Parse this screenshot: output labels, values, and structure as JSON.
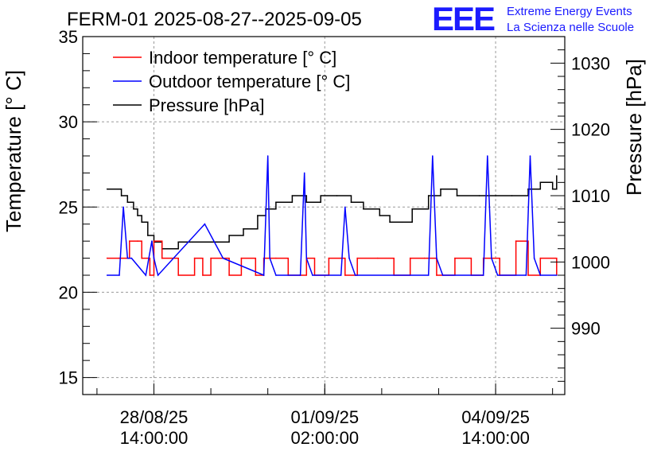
{
  "chart_data": {
    "type": "line",
    "title": "FERM-01 2025-08-27--2025-09-05",
    "ylabel_left": "Temperature [° C]",
    "ylabel_right": "Pressure [hPa]",
    "xlabel": "",
    "xlim": [
      "2025-08-27T03:00:00",
      "2025-09-06T00:00:00"
    ],
    "ylim_left": [
      14,
      35
    ],
    "ylim_right": [
      980,
      1034
    ],
    "left_ticks": [
      15,
      20,
      25,
      30,
      35
    ],
    "right_ticks": [
      990,
      1000,
      1010,
      1020,
      1030
    ],
    "x_ticks": [
      {
        "x": "2025-08-28T14:00:00",
        "date": "28/08/25",
        "time": "14:00:00"
      },
      {
        "x": "2025-09-01T02:00:00",
        "date": "01/09/25",
        "time": "02:00:00"
      },
      {
        "x": "2025-09-04T14:00:00",
        "date": "04/09/25",
        "time": "14:00:00"
      }
    ],
    "grid": true,
    "legend_position": "top-left",
    "series": [
      {
        "name": "Indoor temperature [° C]",
        "color": "#ff0000",
        "axis": "left",
        "step": true,
        "x": [
          "2025-08-27T15:00",
          "2025-08-27T21:00",
          "2025-08-28T02:00",
          "2025-08-28T06:00",
          "2025-08-28T08:00",
          "2025-08-28T12:00",
          "2025-08-28T14:00",
          "2025-08-28T18:00",
          "2025-08-29T02:00",
          "2025-08-29T10:00",
          "2025-08-29T14:00",
          "2025-08-29T18:00",
          "2025-08-30T03:00",
          "2025-08-30T09:00",
          "2025-08-30T16:00",
          "2025-08-30T20:00",
          "2025-08-31T02:00",
          "2025-08-31T08:00",
          "2025-08-31T17:00",
          "2025-08-31T21:00",
          "2025-09-01T04:00",
          "2025-09-01T12:00",
          "2025-09-01T18:00",
          "2025-09-02T04:00",
          "2025-09-02T12:00",
          "2025-09-02T20:00",
          "2025-09-03T03:00",
          "2025-09-03T09:00",
          "2025-09-03T18:00",
          "2025-09-04T02:00",
          "2025-09-04T08:00",
          "2025-09-04T16:00",
          "2025-09-05T00:00",
          "2025-09-05T06:00",
          "2025-09-05T12:00",
          "2025-09-05T20:00"
        ],
        "y": [
          22,
          22,
          23,
          23,
          22,
          21,
          23,
          22,
          21,
          22,
          21,
          22,
          21,
          22,
          21,
          22,
          22,
          21,
          22,
          21,
          22,
          21,
          22,
          22,
          21,
          22,
          22,
          21,
          22,
          21,
          22,
          21,
          23,
          21,
          22,
          21
        ]
      },
      {
        "name": "Outdoor temperature [° C]",
        "color": "#0000ff",
        "axis": "left",
        "x": [
          "2025-08-27T15:00",
          "2025-08-27T21:00",
          "2025-08-27T23:00",
          "2025-08-28T01:00",
          "2025-08-28T03:00",
          "2025-08-28T10:00",
          "2025-08-28T13:00",
          "2025-08-28T14:00",
          "2025-08-28T16:00",
          "2025-08-29T15:00",
          "2025-08-30T00:00",
          "2025-08-30T20:00",
          "2025-08-30T22:00",
          "2025-08-30T23:00",
          "2025-08-31T02:00",
          "2025-08-31T14:00",
          "2025-08-31T16:00",
          "2025-08-31T17:00",
          "2025-08-31T20:00",
          "2025-09-01T10:00",
          "2025-09-01T12:00",
          "2025-09-01T14:00",
          "2025-09-01T17:00",
          "2025-09-03T05:00",
          "2025-09-03T07:00",
          "2025-09-03T09:00",
          "2025-09-03T12:00",
          "2025-09-04T08:00",
          "2025-09-04T10:00",
          "2025-09-04T12:00",
          "2025-09-04T15:00",
          "2025-09-05T05:00",
          "2025-09-05T07:00",
          "2025-09-05T09:00",
          "2025-09-05T12:00",
          "2025-09-05T20:00"
        ],
        "y": [
          21,
          21,
          25,
          22,
          22,
          21,
          23,
          22,
          21,
          24,
          22,
          21,
          28,
          22,
          21,
          21,
          27,
          22,
          21,
          21,
          25,
          22,
          21,
          21,
          28,
          22,
          21,
          21,
          28,
          22,
          21,
          21,
          28,
          22,
          21,
          21
        ]
      },
      {
        "name": "Pressure [hPa]",
        "color": "#000000",
        "axis": "right",
        "step": true,
        "x": [
          "2025-08-27T15:00",
          "2025-08-27T22:00",
          "2025-08-28T01:00",
          "2025-08-28T04:00",
          "2025-08-28T06:00",
          "2025-08-28T08:00",
          "2025-08-28T11:00",
          "2025-08-28T14:00",
          "2025-08-28T18:00",
          "2025-08-29T02:00",
          "2025-08-29T09:00",
          "2025-08-29T18:00",
          "2025-08-30T03:00",
          "2025-08-30T10:00",
          "2025-08-30T17:00",
          "2025-08-30T21:00",
          "2025-08-31T02:00",
          "2025-08-31T10:00",
          "2025-08-31T17:00",
          "2025-09-01T00:00",
          "2025-09-01T08:00",
          "2025-09-01T15:00",
          "2025-09-01T21:00",
          "2025-09-02T05:00",
          "2025-09-02T10:00",
          "2025-09-02T16:00",
          "2025-09-02T21:00",
          "2025-09-03T05:00",
          "2025-09-03T11:00",
          "2025-09-03T19:00",
          "2025-09-04T06:00",
          "2025-09-04T14:00",
          "2025-09-04T22:00",
          "2025-09-05T06:00",
          "2025-09-05T12:00",
          "2025-09-05T18:00",
          "2025-09-05T20:00"
        ],
        "y": [
          1011,
          1010,
          1009,
          1008,
          1007,
          1006,
          1004,
          1003,
          1002,
          1003,
          1003,
          1003,
          1004,
          1005,
          1007,
          1008,
          1009,
          1010,
          1009,
          1010,
          1010,
          1009,
          1008,
          1007,
          1006,
          1006,
          1008,
          1010,
          1011,
          1010,
          1010,
          1010,
          1010,
          1011,
          1012,
          1011,
          1013
        ]
      }
    ]
  },
  "logo": {
    "letters": "EEE",
    "line1": "Extreme Energy Events",
    "line2": "La Scienza nelle Scuole"
  }
}
